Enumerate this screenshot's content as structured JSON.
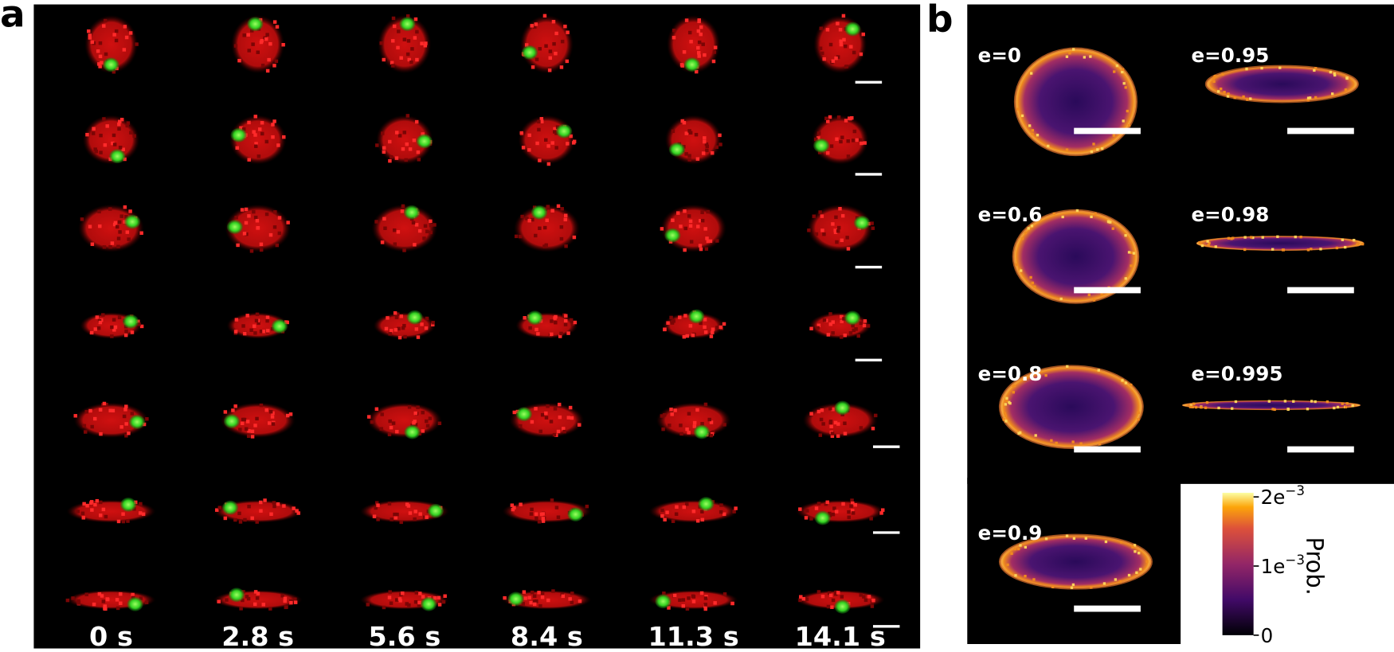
{
  "panel_a": {
    "label": "a",
    "times": [
      "0 s",
      "2.8 s",
      "5.6 s",
      "8.4 s",
      "11.3 s",
      "14.1 s"
    ]
  },
  "panel_b": {
    "label": "b",
    "shapes": [
      "e=0",
      "e=0.6",
      "e=0.8",
      "e=0.9",
      "e=0.95",
      "e=0.98",
      "e=0.995"
    ],
    "colorbar": {
      "label": "Prob.",
      "lim": [
        0,
        0.00206
      ],
      "ticks": [
        0,
        {
          "value": 0.001,
          "label": "1e",
          "exp": "−3"
        },
        {
          "value": 0.002,
          "label": "2e",
          "exp": "−3"
        }
      ]
    }
  }
}
